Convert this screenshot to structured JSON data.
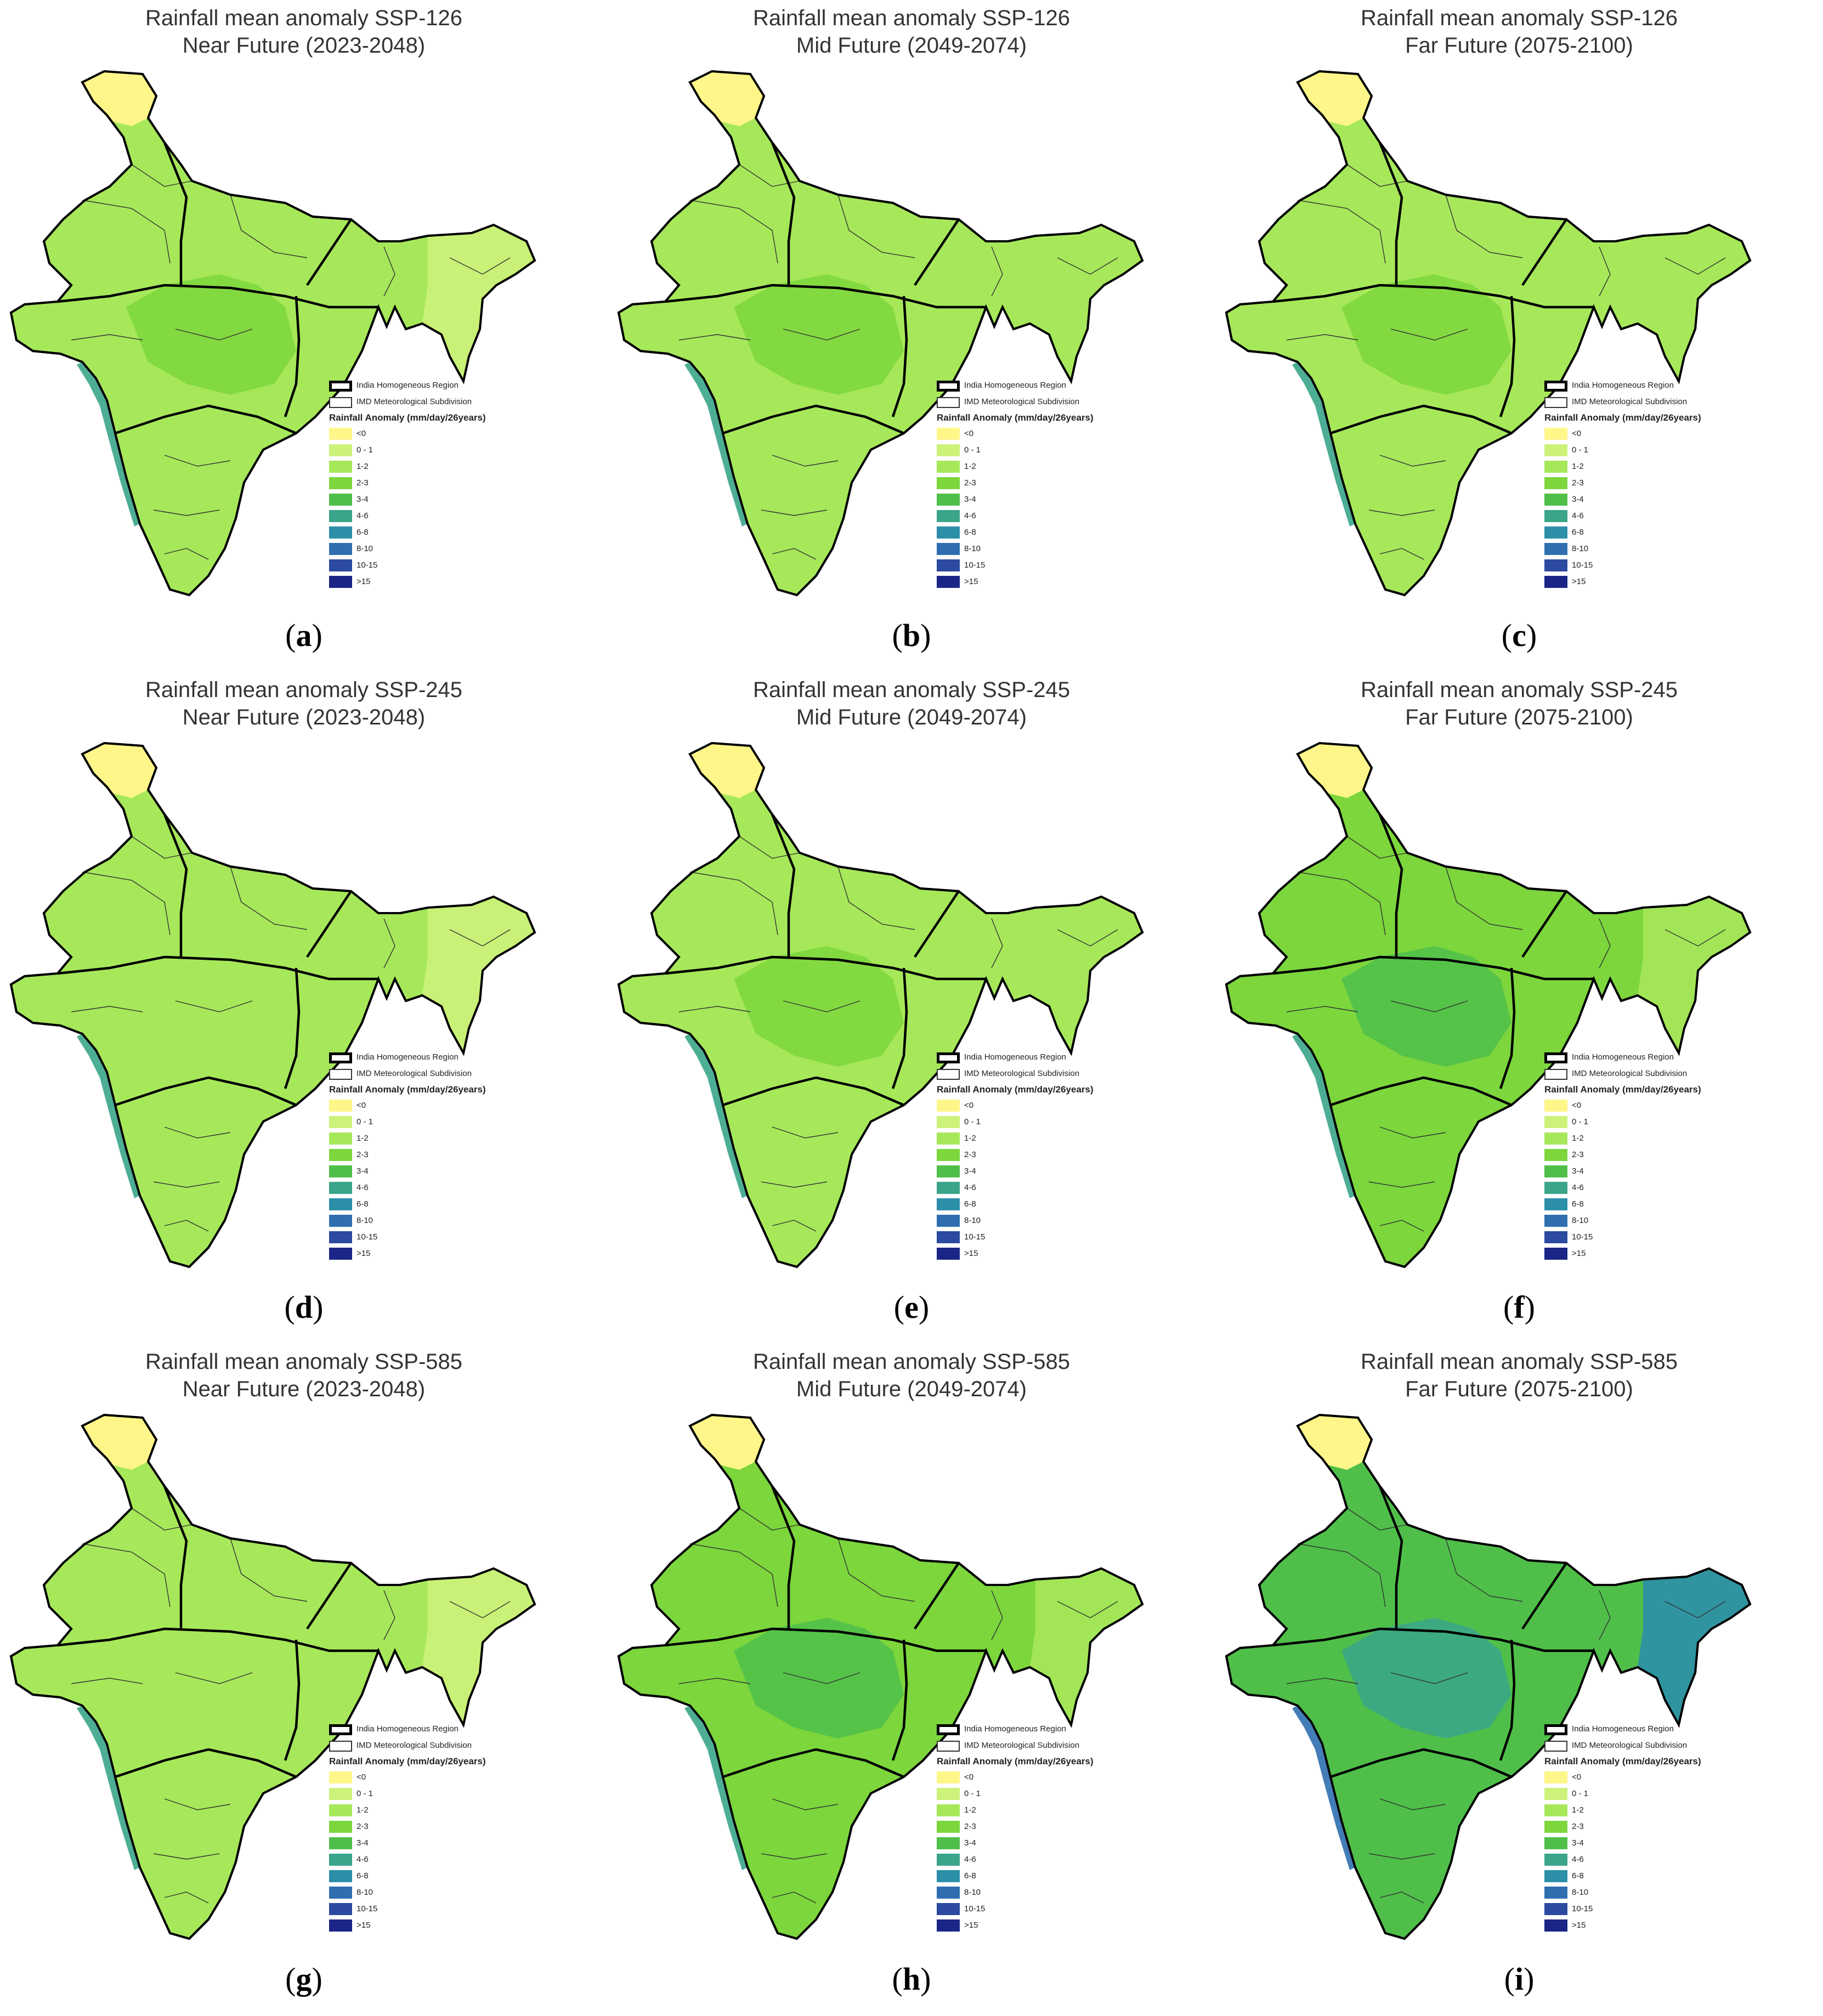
{
  "legend": {
    "region_label": "India Homogeneous Region",
    "subdivision_label": "IMD Meteorological Subdivision",
    "title": "Rainfall Anomaly (mm/day/26years)",
    "classes": [
      {
        "label": "<0",
        "color": "#fff68a"
      },
      {
        "label": "0 - 1",
        "color": "#cdf27a"
      },
      {
        "label": "1-2",
        "color": "#a6e85a"
      },
      {
        "label": "2-3",
        "color": "#7cd63c"
      },
      {
        "label": "3-4",
        "color": "#4fbf4a"
      },
      {
        "label": "4-6",
        "color": "#3aa58a"
      },
      {
        "label": "6-8",
        "color": "#2b8fa8"
      },
      {
        "label": "8-10",
        "color": "#2f6fb0"
      },
      {
        "label": "10-15",
        "color": "#2b4aa0"
      },
      {
        "label": ">15",
        "color": "#1a2585"
      }
    ]
  },
  "panels": [
    {
      "id": "a",
      "title_line1": "Rainfall mean anomaly SSP-126",
      "title_line2": "Near Future (2023-2048)",
      "caption": "a",
      "base": "#a6e85a",
      "north": "#fff68a",
      "central": "#7cd63c",
      "northeast": "#cdf27a",
      "coast": "#3aa58a"
    },
    {
      "id": "b",
      "title_line1": "Rainfall mean anomaly SSP-126",
      "title_line2": "Mid Future (2049-2074)",
      "caption": "b",
      "base": "#a6e85a",
      "north": "#fff68a",
      "central": "#7cd63c",
      "northeast": "#a6e85a",
      "coast": "#3aa58a"
    },
    {
      "id": "c",
      "title_line1": "Rainfall mean anomaly SSP-126",
      "title_line2": "Far Future (2075-2100)",
      "caption": "c",
      "base": "#a6e85a",
      "north": "#fff68a",
      "central": "#7cd63c",
      "northeast": "#a6e85a",
      "coast": "#3aa58a"
    },
    {
      "id": "d",
      "title_line1": "Rainfall mean anomaly SSP-245",
      "title_line2": "Near Future (2023-2048)",
      "caption": "d",
      "base": "#a6e85a",
      "north": "#fff68a",
      "central": "#a6e85a",
      "northeast": "#cdf27a",
      "coast": "#3aa58a"
    },
    {
      "id": "e",
      "title_line1": "Rainfall mean anomaly SSP-245",
      "title_line2": "Mid Future (2049-2074)",
      "caption": "e",
      "base": "#a6e85a",
      "north": "#fff68a",
      "central": "#7cd63c",
      "northeast": "#a6e85a",
      "coast": "#3aa58a"
    },
    {
      "id": "f",
      "title_line1": "Rainfall mean anomaly SSP-245",
      "title_line2": "Far Future (2075-2100)",
      "caption": "f",
      "base": "#7cd63c",
      "north": "#fff68a",
      "central": "#4fbf4a",
      "northeast": "#a6e85a",
      "coast": "#3aa58a"
    },
    {
      "id": "g",
      "title_line1": "Rainfall mean anomaly SSP-585",
      "title_line2": "Near Future (2023-2048)",
      "caption": "g",
      "base": "#a6e85a",
      "north": "#fff68a",
      "central": "#a6e85a",
      "northeast": "#cdf27a",
      "coast": "#3aa58a"
    },
    {
      "id": "h",
      "title_line1": "Rainfall mean anomaly SSP-585",
      "title_line2": "Mid Future (2049-2074)",
      "caption": "h",
      "base": "#7cd63c",
      "north": "#fff68a",
      "central": "#4fbf4a",
      "northeast": "#a6e85a",
      "coast": "#3aa58a"
    },
    {
      "id": "i",
      "title_line1": "Rainfall mean anomaly SSP-585",
      "title_line2": "Far Future (2075-2100)",
      "caption": "i",
      "base": "#4fbf4a",
      "north": "#fff68a",
      "central": "#3aa58a",
      "northeast": "#2b8fa8",
      "coast": "#2f6fb0"
    }
  ]
}
